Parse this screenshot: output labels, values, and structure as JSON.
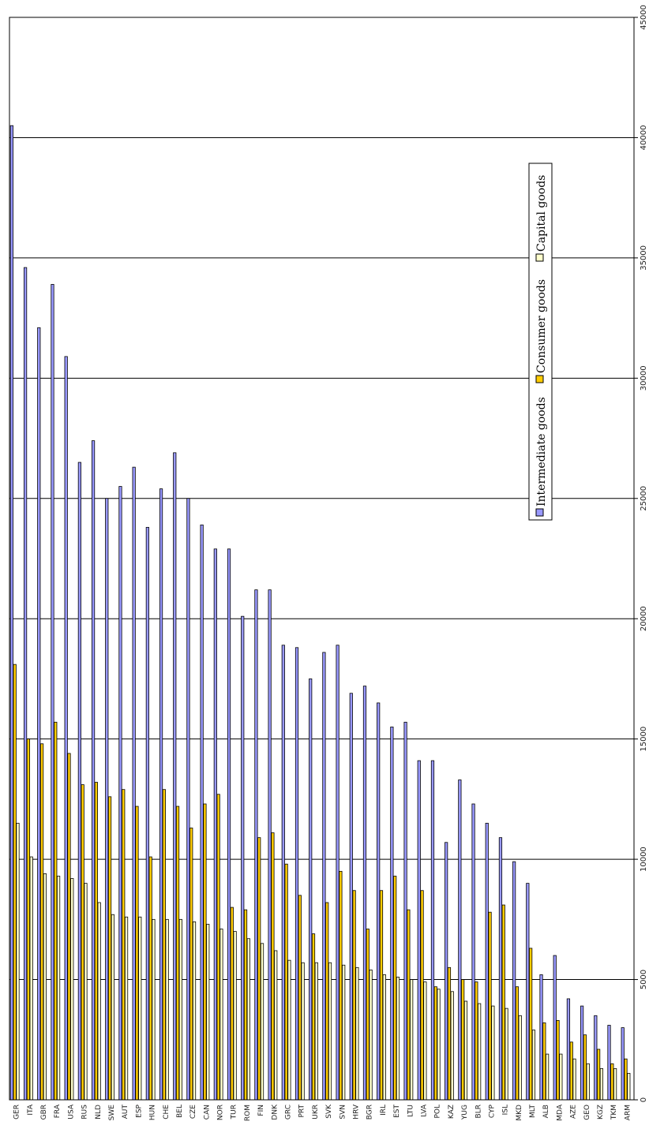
{
  "chart_data": {
    "type": "bar",
    "orientation": "rotated-vertical",
    "categories": [
      "GER",
      "ITA",
      "GBR",
      "FRA",
      "USA",
      "RUS",
      "NLD",
      "SWE",
      "AUT",
      "ESP",
      "HUN",
      "CHE",
      "BEL",
      "CZE",
      "CAN",
      "NOR",
      "TUR",
      "ROM",
      "FIN",
      "DNK",
      "GRC",
      "PRT",
      "UKR",
      "SVK",
      "SVN",
      "HRV",
      "BGR",
      "IRL",
      "EST",
      "LTU",
      "LVA",
      "POL",
      "KAZ",
      "YUG",
      "BLR",
      "CYP",
      "ISL",
      "MKD",
      "MLT",
      "ALB",
      "MDA",
      "AZE",
      "GEO",
      "KGZ",
      "TKM",
      "ARM"
    ],
    "series": [
      {
        "name": "Intermediate goods",
        "color": "#9999ff",
        "values": [
          40500,
          34600,
          32100,
          33900,
          30900,
          26500,
          27400,
          25000,
          25500,
          26300,
          23800,
          25400,
          26900,
          25000,
          23900,
          22900,
          22900,
          20100,
          21200,
          21200,
          18900,
          18800,
          17500,
          18600,
          18900,
          16900,
          17200,
          16500,
          15500,
          15700,
          14100,
          14100,
          10700,
          13300,
          12300,
          11500,
          10900,
          9900,
          9000,
          5200,
          6000,
          4200,
          3900,
          3500,
          3100,
          3000
        ]
      },
      {
        "name": "Consumer goods",
        "color": "#ffcc00",
        "values": [
          18100,
          15000,
          14800,
          15700,
          14400,
          13100,
          13200,
          12600,
          12900,
          12200,
          10100,
          12900,
          12200,
          11300,
          12300,
          12700,
          8000,
          7900,
          10900,
          11100,
          9800,
          8500,
          6900,
          8200,
          9500,
          8700,
          7100,
          8700,
          9300,
          7900,
          8700,
          4700,
          5500,
          5000,
          4900,
          7800,
          8100,
          4700,
          6300,
          3200,
          3300,
          2400,
          2700,
          2100,
          1500,
          1700
        ]
      },
      {
        "name": "Capital goods",
        "color": "#ffffcc",
        "values": [
          11500,
          10100,
          9400,
          9300,
          9200,
          9000,
          8200,
          7700,
          7600,
          7600,
          7500,
          7500,
          7500,
          7400,
          7300,
          7100,
          7000,
          6700,
          6500,
          6200,
          5800,
          5700,
          5700,
          5700,
          5600,
          5500,
          5400,
          5200,
          5100,
          5000,
          4900,
          4600,
          4500,
          4100,
          4000,
          3900,
          3800,
          3500,
          2900,
          1900,
          1900,
          1700,
          1500,
          1300,
          1300,
          1100
        ]
      }
    ],
    "ylim": [
      0,
      45000
    ],
    "yticks": [
      "0",
      "5000",
      "10000",
      "15000",
      "20000",
      "25000",
      "30000",
      "35000",
      "40000",
      "45000"
    ],
    "grid": true,
    "legend_position": "right",
    "legend_labels": [
      "Intermediate goods",
      "Consumer goods",
      "Capital goods"
    ],
    "title": "",
    "xlabel": "",
    "ylabel": ""
  }
}
